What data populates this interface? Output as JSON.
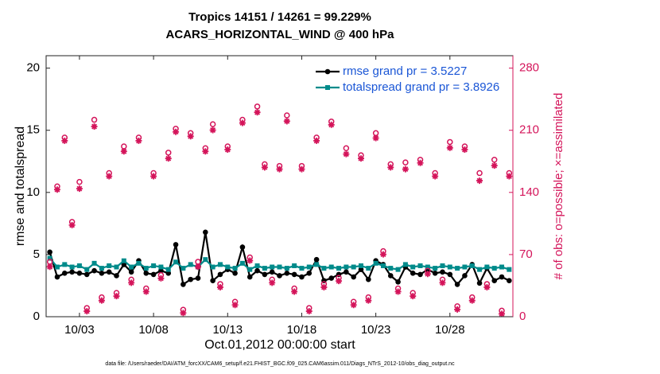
{
  "chart_data": {
    "type": "line",
    "title": "Tropics 14151 / 14261 = 99.229%",
    "subtitle": "ACARS_HORIZONTAL_WIND @ 400 hPa",
    "x_label": "Oct.01,2012 00:00:00 start",
    "y_label": "rmse and totalspread",
    "y2_label": "# of obs: o=possible; ×=assimilated",
    "footer": "data file: /Users/raeder/DAI/ATM_forcXX/CAM6_setup/f.e21.FHIST_BGC.f09_025.CAM6assim.011/Diags_NTrS_2012-10/obs_diag_output.nc",
    "legend_position": "upper right",
    "xlim": [
      -0.25,
      31.25
    ],
    "xticks": [
      {
        "value": 2,
        "label": "10/03"
      },
      {
        "value": 7,
        "label": "10/08"
      },
      {
        "value": 12,
        "label": "10/13"
      },
      {
        "value": 17,
        "label": "10/18"
      },
      {
        "value": 22,
        "label": "10/23"
      },
      {
        "value": 27,
        "label": "10/28"
      }
    ],
    "ylim": [
      0,
      21
    ],
    "yticks": [
      0,
      5,
      10,
      15,
      20
    ],
    "y2lim": [
      0,
      294
    ],
    "y2ticks": [
      0,
      70,
      140,
      210,
      280
    ],
    "x": [
      0,
      0.5,
      1,
      1.5,
      2,
      2.5,
      3,
      3.5,
      4,
      4.5,
      5,
      5.5,
      6,
      6.5,
      7,
      7.5,
      8,
      8.5,
      9,
      9.5,
      10,
      10.5,
      11,
      11.5,
      12,
      12.5,
      13,
      13.5,
      14,
      14.5,
      15,
      15.5,
      16,
      16.5,
      17,
      17.5,
      18,
      18.5,
      19,
      19.5,
      20,
      20.5,
      21,
      21.5,
      22,
      22.5,
      23,
      23.5,
      24,
      24.5,
      25,
      25.5,
      26,
      26.5,
      27,
      27.5,
      28,
      28.5,
      29,
      29.5,
      30,
      30.5,
      31
    ],
    "series": [
      {
        "name": "rmse grand pr = 3.5227",
        "color": "#000000",
        "marker": "circle",
        "values": [
          5.2,
          3.2,
          3.5,
          3.6,
          3.5,
          3.4,
          3.7,
          3.5,
          3.6,
          3.3,
          4.2,
          3.6,
          4.5,
          3.5,
          3.4,
          3.7,
          3.5,
          5.8,
          2.6,
          3.0,
          3.1,
          6.8,
          2.9,
          3.4,
          3.8,
          3.5,
          5.6,
          3.2,
          3.7,
          3.4,
          3.6,
          3.3,
          3.5,
          3.4,
          3.2,
          3.5,
          4.6,
          2.9,
          3.1,
          3.4,
          3.6,
          3.2,
          3.8,
          3.0,
          4.5,
          4.2,
          3.3,
          2.8,
          4.0,
          3.5,
          3.4,
          3.8,
          3.5,
          3.6,
          3.4,
          2.6,
          3.3,
          4.2,
          2.7,
          3.9,
          2.9,
          3.2,
          2.9
        ]
      },
      {
        "name": "totalspread grand pr = 3.8926",
        "color": "#008b8b",
        "marker": "square",
        "values": [
          4.7,
          4.0,
          4.2,
          4.0,
          4.1,
          3.8,
          4.3,
          3.9,
          4.1,
          4.0,
          4.5,
          4.0,
          4.3,
          3.9,
          4.1,
          4.0,
          3.8,
          4.4,
          3.9,
          4.2,
          4.0,
          4.6,
          4.0,
          4.2,
          4.0,
          3.9,
          4.3,
          3.8,
          4.1,
          3.9,
          4.0,
          4.0,
          3.9,
          4.1,
          3.9,
          4.0,
          4.2,
          3.9,
          4.0,
          3.9,
          4.0,
          4.0,
          4.1,
          3.9,
          4.3,
          4.1,
          3.9,
          3.8,
          4.2,
          4.0,
          4.1,
          4.0,
          3.9,
          4.1,
          4.0,
          3.9,
          4.0,
          4.1,
          3.8,
          4.0,
          3.9,
          4.0,
          3.8
        ]
      },
      {
        "name": "possible",
        "color": "#d4145a",
        "marker": "ring",
        "axis": "y2",
        "values": [
          60,
          145,
          200,
          105,
          150,
          8,
          220,
          20,
          160,
          25,
          190,
          40,
          200,
          30,
          160,
          45,
          183,
          210,
          6,
          205,
          60,
          188,
          215,
          35,
          190,
          15,
          220,
          65,
          235,
          170,
          40,
          168,
          225,
          30,
          168,
          8,
          200,
          35,
          218,
          42,
          188,
          15,
          180,
          20,
          205,
          72,
          170,
          30,
          172,
          25,
          175,
          50,
          160,
          40,
          195,
          10,
          190,
          20,
          160,
          35,
          175,
          5,
          160
        ]
      },
      {
        "name": "assimilated",
        "color": "#d4145a",
        "marker": "star",
        "axis": "y2",
        "values": [
          58,
          145,
          200,
          105,
          146,
          8,
          216,
          20,
          160,
          25,
          188,
          40,
          200,
          30,
          160,
          45,
          180,
          210,
          6,
          205,
          58,
          188,
          212,
          35,
          190,
          15,
          220,
          65,
          232,
          170,
          40,
          168,
          222,
          30,
          168,
          8,
          200,
          35,
          218,
          42,
          185,
          15,
          180,
          20,
          203,
          72,
          170,
          30,
          168,
          25,
          175,
          50,
          160,
          40,
          192,
          10,
          190,
          20,
          155,
          35,
          172,
          5,
          160
        ]
      }
    ]
  }
}
